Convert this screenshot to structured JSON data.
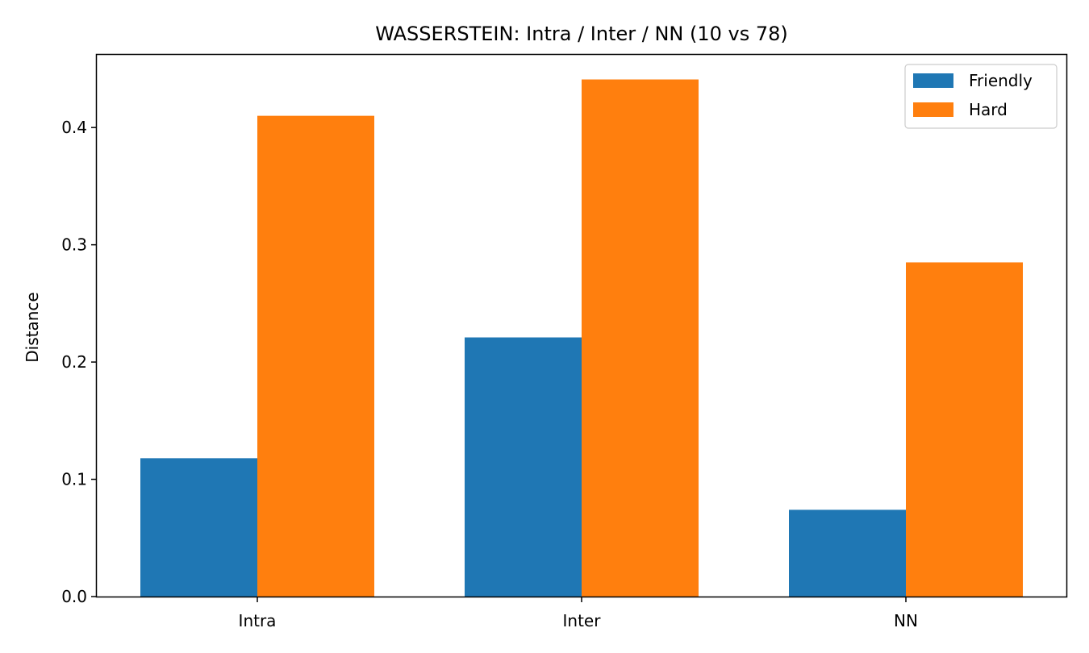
{
  "chart_data": {
    "type": "bar",
    "title": "WASSERSTEIN: Intra / Inter / NN (10 vs 78)",
    "xlabel": "",
    "ylabel": "Distance",
    "categories": [
      "Intra",
      "Inter",
      "NN"
    ],
    "series": [
      {
        "name": "Friendly",
        "color": "#1f77b4",
        "values": [
          0.118,
          0.221,
          0.074
        ]
      },
      {
        "name": "Hard",
        "color": "#ff7f0e",
        "values": [
          0.41,
          0.441,
          0.285
        ]
      }
    ],
    "ylim": [
      0,
      0.462
    ],
    "yticks": [
      0.0,
      0.1,
      0.2,
      0.3,
      0.4
    ],
    "ytick_labels": [
      "0.0",
      "0.1",
      "0.2",
      "0.3",
      "0.4"
    ],
    "grid": false,
    "legend_position": "top-right"
  }
}
